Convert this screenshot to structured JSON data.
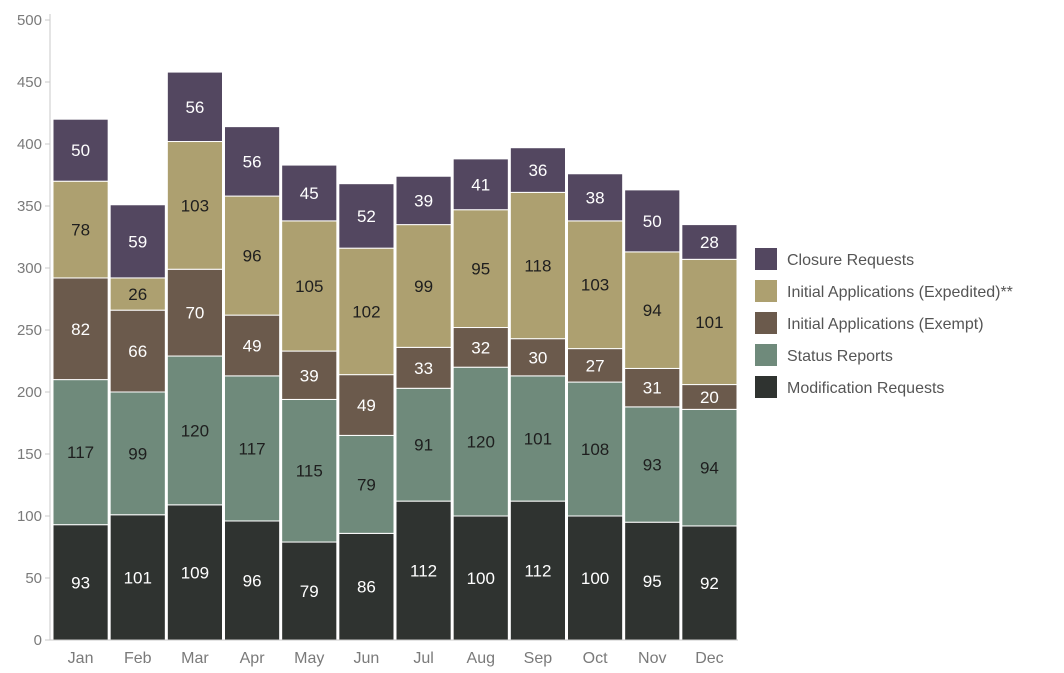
{
  "chart_data": {
    "type": "bar",
    "stacked": true,
    "title": "",
    "xlabel": "",
    "ylabel": "",
    "ylim": [
      0,
      500
    ],
    "yticks": [
      0,
      50,
      100,
      150,
      200,
      250,
      300,
      350,
      400,
      450,
      500
    ],
    "grid": false,
    "legend_position": "right",
    "categories": [
      "Jan",
      "Feb",
      "Mar",
      "Apr",
      "May",
      "Jun",
      "Jul",
      "Aug",
      "Sep",
      "Oct",
      "Nov",
      "Dec"
    ],
    "series": [
      {
        "name": "Modification Requests",
        "color": "#2f3330",
        "label_color": "#ffffff",
        "values": [
          93,
          101,
          109,
          96,
          79,
          86,
          112,
          100,
          112,
          100,
          95,
          92
        ]
      },
      {
        "name": "Status Reports",
        "color": "#6f8a7b",
        "label_color": "#1e1e1e",
        "values": [
          117,
          99,
          120,
          117,
          115,
          79,
          91,
          120,
          101,
          108,
          93,
          94
        ]
      },
      {
        "name": "Initial Applications (Exempt)",
        "color": "#6b5a4c",
        "label_color": "#ffffff",
        "values": [
          82,
          66,
          70,
          49,
          39,
          49,
          33,
          32,
          30,
          27,
          31,
          20
        ]
      },
      {
        "name": "Initial Applications (Expedited)**",
        "color": "#ada070",
        "label_color": "#1e1e1e",
        "values": [
          78,
          26,
          103,
          96,
          105,
          102,
          99,
          95,
          118,
          103,
          94,
          101
        ]
      },
      {
        "name": "Closure Requests",
        "color": "#534760",
        "label_color": "#ffffff",
        "values": [
          50,
          59,
          56,
          56,
          45,
          52,
          39,
          41,
          36,
          38,
          50,
          28
        ]
      }
    ],
    "legend_order": [
      "Closure Requests",
      "Initial Applications (Expedited)**",
      "Initial Applications (Exempt)",
      "Status Reports",
      "Modification Requests"
    ]
  }
}
